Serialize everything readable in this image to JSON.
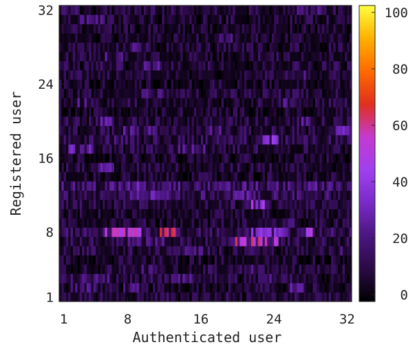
{
  "chart_data": {
    "type": "heatmap",
    "title": "",
    "xlabel": "Authenticated user",
    "ylabel": "Registered user",
    "x_range": [
      1,
      32
    ],
    "y_range": [
      1,
      32
    ],
    "x_ticks": [
      "1",
      "8",
      "16",
      "24",
      "32"
    ],
    "y_ticks": [
      "1",
      "8",
      "16",
      "24",
      "32"
    ],
    "colorbar": {
      "range": [
        0,
        100
      ],
      "ticks": [
        "0",
        "20",
        "40",
        "60",
        "80",
        "100"
      ],
      "colormap": [
        "#000000",
        "#2a0a45",
        "#4b1680",
        "#7a2ac8",
        "#a040f0",
        "#c43ad0",
        "#e0301e",
        "#ff6a00",
        "#ffb000",
        "#ffff40"
      ]
    },
    "rows": [
      {
        "y": 1,
        "level": 12,
        "bands": []
      },
      {
        "y": 2,
        "level": 10,
        "bands": [
          {
            "from": 2,
            "to": 4,
            "v": 22
          },
          {
            "from": 8,
            "to": 9,
            "v": 18
          },
          {
            "from": 26,
            "to": 27,
            "v": 24
          }
        ]
      },
      {
        "y": 3,
        "level": 12,
        "bands": [
          {
            "from": 1,
            "to": 6,
            "v": 20
          },
          {
            "from": 13,
            "to": 15,
            "v": 20
          },
          {
            "from": 24,
            "to": 26,
            "v": 22
          }
        ]
      },
      {
        "y": 4,
        "level": 11,
        "bands": [
          {
            "from": 9,
            "to": 11,
            "v": 18
          },
          {
            "from": 21,
            "to": 23,
            "v": 18
          }
        ]
      },
      {
        "y": 5,
        "level": 9,
        "bands": []
      },
      {
        "y": 6,
        "level": 12,
        "bands": [
          {
            "from": 14,
            "to": 16,
            "v": 20
          },
          {
            "from": 29,
            "to": 31,
            "v": 18
          }
        ]
      },
      {
        "y": 7,
        "level": 14,
        "bands": [
          {
            "from": 20,
            "to": 24,
            "v": 55
          },
          {
            "from": 8,
            "to": 12,
            "v": 20
          }
        ]
      },
      {
        "y": 8,
        "level": 16,
        "bands": [
          {
            "from": 6,
            "to": 9,
            "v": 52
          },
          {
            "from": 12,
            "to": 13,
            "v": 62
          },
          {
            "from": 22,
            "to": 25,
            "v": 35
          },
          {
            "from": 27,
            "to": 28,
            "v": 50
          }
        ]
      },
      {
        "y": 9,
        "level": 10,
        "bands": [
          {
            "from": 24,
            "to": 26,
            "v": 18
          }
        ]
      },
      {
        "y": 10,
        "level": 9,
        "bands": []
      },
      {
        "y": 11,
        "level": 12,
        "bands": [
          {
            "from": 22,
            "to": 23,
            "v": 45
          }
        ]
      },
      {
        "y": 12,
        "level": 18,
        "bands": [
          {
            "from": 8,
            "to": 9,
            "v": 26
          },
          {
            "from": 11,
            "to": 12,
            "v": 26
          },
          {
            "from": 20,
            "to": 21,
            "v": 26
          }
        ]
      },
      {
        "y": 13,
        "level": 22,
        "bands": [
          {
            "from": 8,
            "to": 10,
            "v": 28
          },
          {
            "from": 12,
            "to": 13,
            "v": 26
          }
        ]
      },
      {
        "y": 14,
        "level": 9,
        "bands": []
      },
      {
        "y": 15,
        "level": 11,
        "bands": [
          {
            "from": 5,
            "to": 6,
            "v": 24
          }
        ]
      },
      {
        "y": 16,
        "level": 9,
        "bands": []
      },
      {
        "y": 17,
        "level": 12,
        "bands": [
          {
            "from": 2,
            "to": 4,
            "v": 28
          },
          {
            "from": 14,
            "to": 16,
            "v": 22
          }
        ]
      },
      {
        "y": 18,
        "level": 14,
        "bands": [
          {
            "from": 6,
            "to": 8,
            "v": 22
          },
          {
            "from": 23,
            "to": 24,
            "v": 38
          }
        ]
      },
      {
        "y": 19,
        "level": 12,
        "bands": [
          {
            "from": 8,
            "to": 11,
            "v": 22
          },
          {
            "from": 17,
            "to": 18,
            "v": 22
          },
          {
            "from": 31,
            "to": 32,
            "v": 28
          }
        ]
      },
      {
        "y": 20,
        "level": 12,
        "bands": [
          {
            "from": 5,
            "to": 6,
            "v": 24
          },
          {
            "from": 27,
            "to": 28,
            "v": 24
          }
        ]
      },
      {
        "y": 21,
        "level": 9,
        "bands": []
      },
      {
        "y": 22,
        "level": 11,
        "bands": [
          {
            "from": 3,
            "to": 4,
            "v": 20
          },
          {
            "from": 24,
            "to": 26,
            "v": 20
          }
        ]
      },
      {
        "y": 23,
        "level": 11,
        "bands": [
          {
            "from": 10,
            "to": 12,
            "v": 18
          }
        ]
      },
      {
        "y": 24,
        "level": 9,
        "bands": []
      },
      {
        "y": 25,
        "level": 11,
        "bands": [
          {
            "from": 26,
            "to": 27,
            "v": 22
          }
        ]
      },
      {
        "y": 26,
        "level": 12,
        "bands": [
          {
            "from": 10,
            "to": 12,
            "v": 22
          }
        ]
      },
      {
        "y": 27,
        "level": 11,
        "bands": [
          {
            "from": 6,
            "to": 7,
            "v": 20
          },
          {
            "from": 22,
            "to": 23,
            "v": 18
          }
        ]
      },
      {
        "y": 28,
        "level": 10,
        "bands": [
          {
            "from": 9,
            "to": 10,
            "v": 22
          }
        ]
      },
      {
        "y": 29,
        "level": 9,
        "bands": [
          {
            "from": 18,
            "to": 19,
            "v": 20
          }
        ]
      },
      {
        "y": 30,
        "level": 9,
        "bands": []
      },
      {
        "y": 31,
        "level": 10,
        "bands": [
          {
            "from": 3,
            "to": 5,
            "v": 20
          }
        ]
      },
      {
        "y": 32,
        "level": 11,
        "bands": [
          {
            "from": 1,
            "to": 2,
            "v": 22
          },
          {
            "from": 27,
            "to": 29,
            "v": 18
          }
        ]
      }
    ]
  }
}
